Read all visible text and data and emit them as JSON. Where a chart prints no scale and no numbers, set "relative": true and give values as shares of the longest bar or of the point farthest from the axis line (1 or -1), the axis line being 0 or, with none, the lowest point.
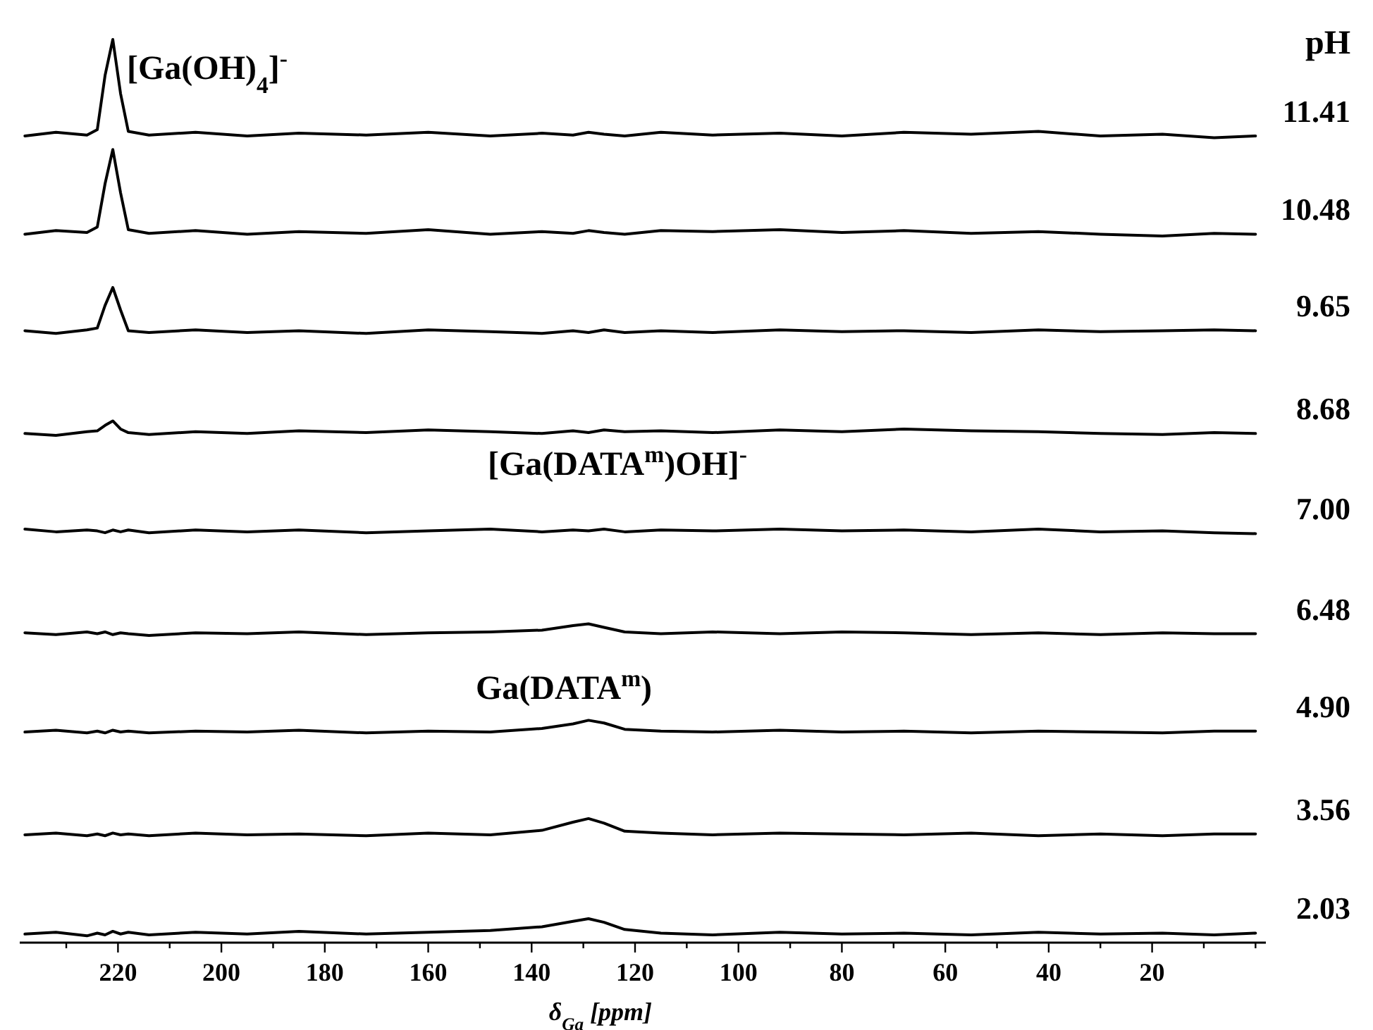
{
  "chart_data": {
    "type": "line",
    "relative": true,
    "xlabel": "δ$_{Ga}$ [ppm]",
    "xlim": [
      239,
      -2
    ],
    "xticks": [
      {
        "value": 230,
        "label": null
      },
      220,
      {
        "value": 210,
        "label": null
      },
      200,
      {
        "value": 190,
        "label": null
      },
      180,
      {
        "value": 170,
        "label": null
      },
      160,
      {
        "value": 150,
        "label": null
      },
      140,
      {
        "value": 130,
        "label": null
      },
      120,
      {
        "value": 110,
        "label": null
      },
      100,
      {
        "value": 90,
        "label": null
      },
      80,
      {
        "value": 70,
        "label": null
      },
      60,
      {
        "value": 50,
        "label": null
      },
      40,
      {
        "value": 30,
        "label": null
      },
      20,
      {
        "value": 10,
        "label": null
      },
      {
        "value": 0,
        "label": null
      }
    ],
    "x": [
      238,
      232,
      226,
      224,
      222.5,
      221,
      219.5,
      218,
      214,
      205,
      195,
      185,
      172,
      160,
      148,
      138,
      132,
      129,
      126,
      122,
      115,
      105,
      92,
      80,
      68,
      55,
      42,
      30,
      18,
      8,
      0
    ],
    "series": [
      {
        "name": "11.41",
        "color": "#000000",
        "values": [
          0.893,
          0.897,
          0.894,
          0.9,
          0.96,
          1.0,
          0.94,
          0.898,
          0.894,
          0.897,
          0.893,
          0.896,
          0.894,
          0.897,
          0.893,
          0.896,
          0.894,
          0.897,
          0.895,
          0.893,
          0.897,
          0.894,
          0.896,
          0.893,
          0.897,
          0.895,
          0.898,
          0.893,
          0.895,
          0.891,
          0.893
        ]
      },
      {
        "name": "10.48",
        "color": "#000000",
        "values": [
          0.784,
          0.788,
          0.786,
          0.792,
          0.84,
          0.878,
          0.83,
          0.789,
          0.785,
          0.788,
          0.784,
          0.787,
          0.785,
          0.789,
          0.784,
          0.787,
          0.785,
          0.788,
          0.786,
          0.784,
          0.788,
          0.787,
          0.789,
          0.786,
          0.788,
          0.785,
          0.787,
          0.784,
          0.782,
          0.785,
          0.784
        ]
      },
      {
        "name": "9.65",
        "color": "#000000",
        "values": [
          0.677,
          0.674,
          0.678,
          0.68,
          0.705,
          0.725,
          0.7,
          0.677,
          0.675,
          0.678,
          0.675,
          0.677,
          0.674,
          0.678,
          0.676,
          0.674,
          0.677,
          0.675,
          0.678,
          0.675,
          0.677,
          0.675,
          0.678,
          0.676,
          0.677,
          0.675,
          0.678,
          0.676,
          0.677,
          0.678,
          0.677
        ]
      },
      {
        "name": "8.68",
        "color": "#000000",
        "values": [
          0.563,
          0.561,
          0.565,
          0.566,
          0.572,
          0.577,
          0.568,
          0.564,
          0.562,
          0.565,
          0.563,
          0.566,
          0.564,
          0.567,
          0.565,
          0.563,
          0.566,
          0.564,
          0.567,
          0.565,
          0.566,
          0.564,
          0.567,
          0.565,
          0.568,
          0.566,
          0.565,
          0.563,
          0.562,
          0.564,
          0.563
        ]
      },
      {
        "name": "7.00",
        "color": "#000000",
        "values": [
          0.457,
          0.454,
          0.456,
          0.455,
          0.453,
          0.456,
          0.454,
          0.456,
          0.453,
          0.456,
          0.454,
          0.456,
          0.453,
          0.455,
          0.457,
          0.454,
          0.456,
          0.455,
          0.457,
          0.454,
          0.456,
          0.455,
          0.457,
          0.455,
          0.456,
          0.454,
          0.457,
          0.454,
          0.455,
          0.453,
          0.452
        ]
      },
      {
        "name": "6.48",
        "color": "#000000",
        "values": [
          0.342,
          0.34,
          0.343,
          0.341,
          0.343,
          0.34,
          0.342,
          0.341,
          0.339,
          0.342,
          0.341,
          0.343,
          0.34,
          0.342,
          0.343,
          0.345,
          0.35,
          0.352,
          0.348,
          0.343,
          0.341,
          0.343,
          0.341,
          0.343,
          0.342,
          0.34,
          0.342,
          0.34,
          0.342,
          0.341,
          0.341
        ]
      },
      {
        "name": "4.90",
        "color": "#000000",
        "values": [
          0.232,
          0.234,
          0.231,
          0.233,
          0.231,
          0.234,
          0.232,
          0.233,
          0.231,
          0.233,
          0.232,
          0.234,
          0.231,
          0.233,
          0.232,
          0.236,
          0.241,
          0.245,
          0.242,
          0.235,
          0.233,
          0.232,
          0.234,
          0.232,
          0.233,
          0.231,
          0.233,
          0.232,
          0.231,
          0.233,
          0.233
        ]
      },
      {
        "name": "3.56",
        "color": "#000000",
        "values": [
          0.118,
          0.12,
          0.117,
          0.119,
          0.117,
          0.12,
          0.118,
          0.119,
          0.117,
          0.12,
          0.118,
          0.119,
          0.117,
          0.12,
          0.118,
          0.123,
          0.132,
          0.136,
          0.131,
          0.122,
          0.12,
          0.118,
          0.12,
          0.119,
          0.118,
          0.12,
          0.117,
          0.119,
          0.117,
          0.119,
          0.119
        ]
      },
      {
        "name": "2.03",
        "color": "#000000",
        "values": [
          0.008,
          0.01,
          0.006,
          0.009,
          0.007,
          0.011,
          0.008,
          0.01,
          0.007,
          0.01,
          0.008,
          0.011,
          0.008,
          0.01,
          0.012,
          0.016,
          0.022,
          0.025,
          0.021,
          0.013,
          0.009,
          0.007,
          0.01,
          0.008,
          0.009,
          0.007,
          0.01,
          0.008,
          0.009,
          0.007,
          0.009
        ]
      }
    ],
    "annotations": [
      "pH",
      "[Ga(OH)$_{4}$]$^{-}$",
      "[Ga(DATA$^{m}$)OH]$^{-}$",
      "Ga(DATA$^{m}$)"
    ]
  }
}
